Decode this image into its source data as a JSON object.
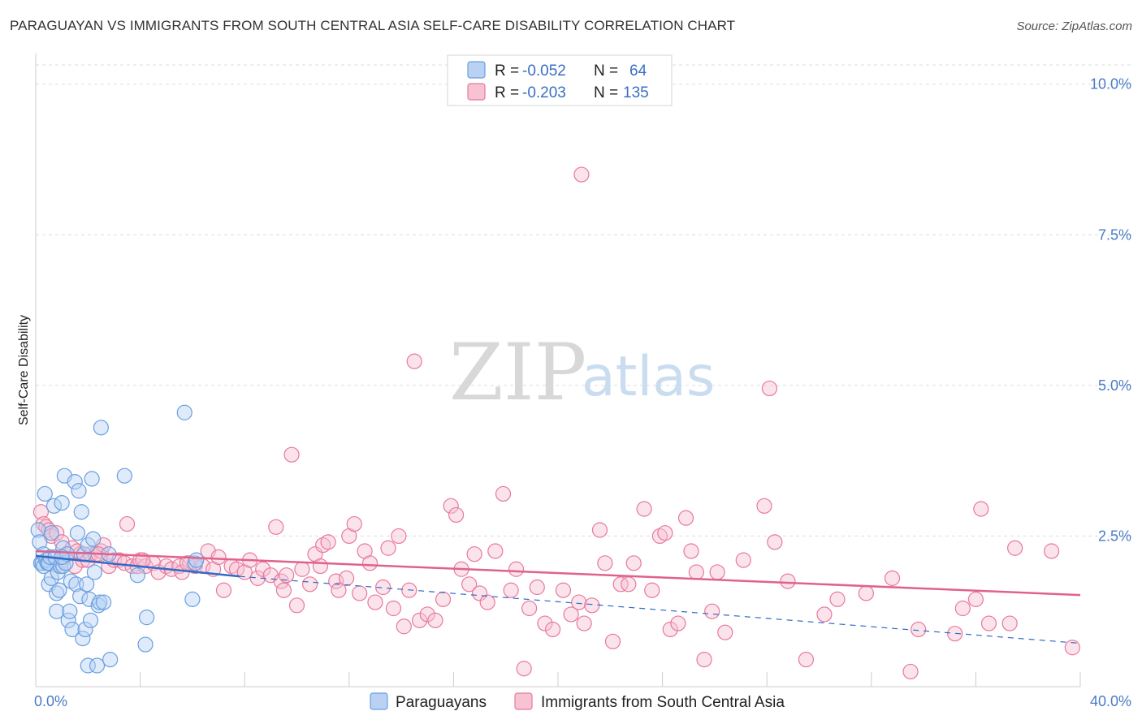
{
  "title": "PARAGUAYAN VS IMMIGRANTS FROM SOUTH CENTRAL ASIA SELF-CARE DISABILITY CORRELATION CHART",
  "source": "Source: ZipAtlas.com",
  "watermark": {
    "left": "ZIP",
    "right": "atlas"
  },
  "colors": {
    "blue": "#6a9fe0",
    "blue_fill": "#b9d2f3",
    "blue_line": "#2f6bc7",
    "pink": "#e8799c",
    "pink_fill": "#f7c2d2",
    "pink_line": "#e0628c",
    "grid": "#dddddd",
    "tick_text": "#4a7cc4"
  },
  "legend_top": {
    "rows": [
      {
        "r_label": "R = ",
        "r_value": "-0.052",
        "n_label": "N = ",
        "n_value": "64"
      },
      {
        "r_label": "R = ",
        "r_value": "-0.203",
        "n_label": "N = ",
        "n_value": "135"
      }
    ]
  },
  "legend_bottom": [
    "Paraguayans",
    "Immigrants from South Central Asia"
  ],
  "chart_data": {
    "type": "scatter",
    "ylabel": "Self-Care Disability",
    "x_tick_labels": [
      "0.0%",
      "40.0%"
    ],
    "y_tick_labels": [
      "10.0%",
      "7.5%",
      "5.0%",
      "2.5%"
    ],
    "y_ticks": [
      10.0,
      7.5,
      5.0,
      2.5
    ],
    "xlim": [
      0,
      40
    ],
    "ylim": [
      0,
      10.4
    ],
    "grid": true,
    "series": [
      {
        "name": "Paraguayans",
        "color": "blue",
        "trend": {
          "x0": 0.0,
          "y0": 2.17,
          "x1": 7.8,
          "y1": 1.83,
          "dashed_x1": 40.0,
          "dashed_y1": 0.72
        },
        "points": [
          [
            0.1,
            2.6
          ],
          [
            0.15,
            2.4
          ],
          [
            0.2,
            2.05
          ],
          [
            0.25,
            2.05
          ],
          [
            0.3,
            2.2
          ],
          [
            0.3,
            2.0
          ],
          [
            0.35,
            3.2
          ],
          [
            0.4,
            2.1
          ],
          [
            0.45,
            2.05
          ],
          [
            0.5,
            2.05
          ],
          [
            0.5,
            1.7
          ],
          [
            0.55,
            2.15
          ],
          [
            0.6,
            1.8
          ],
          [
            0.6,
            2.55
          ],
          [
            0.7,
            3.0
          ],
          [
            0.75,
            2.15
          ],
          [
            0.8,
            1.55
          ],
          [
            0.8,
            1.25
          ],
          [
            0.85,
            1.9
          ],
          [
            0.9,
            1.6
          ],
          [
            0.95,
            2.0
          ],
          [
            1.0,
            3.05
          ],
          [
            1.05,
            2.3
          ],
          [
            1.05,
            2.0
          ],
          [
            1.1,
            3.5
          ],
          [
            1.15,
            2.05
          ],
          [
            1.2,
            2.2
          ],
          [
            1.25,
            1.1
          ],
          [
            1.3,
            1.25
          ],
          [
            1.35,
            1.75
          ],
          [
            1.4,
            0.95
          ],
          [
            1.5,
            3.4
          ],
          [
            1.55,
            1.7
          ],
          [
            1.6,
            2.55
          ],
          [
            1.65,
            3.25
          ],
          [
            1.7,
            1.5
          ],
          [
            1.75,
            2.9
          ],
          [
            1.8,
            0.8
          ],
          [
            1.85,
            2.2
          ],
          [
            1.9,
            0.95
          ],
          [
            1.95,
            1.7
          ],
          [
            2.0,
            2.35
          ],
          [
            2.0,
            0.35
          ],
          [
            2.05,
            1.45
          ],
          [
            2.1,
            1.1
          ],
          [
            2.15,
            3.45
          ],
          [
            2.2,
            2.45
          ],
          [
            2.25,
            1.9
          ],
          [
            2.35,
            0.35
          ],
          [
            2.4,
            1.35
          ],
          [
            2.45,
            1.4
          ],
          [
            2.5,
            4.3
          ],
          [
            2.6,
            1.4
          ],
          [
            2.8,
            2.2
          ],
          [
            2.85,
            0.45
          ],
          [
            3.4,
            3.5
          ],
          [
            3.9,
            1.85
          ],
          [
            4.2,
            0.7
          ],
          [
            4.25,
            1.15
          ],
          [
            5.7,
            4.55
          ],
          [
            6.0,
            1.45
          ],
          [
            6.1,
            2.05
          ],
          [
            6.15,
            2.1
          ],
          [
            1.0,
            2.15
          ]
        ]
      },
      {
        "name": "Immigrants from South Central Asia",
        "color": "pink",
        "trend": {
          "x0": 0.0,
          "y0": 2.25,
          "x1": 40.0,
          "y1": 1.52
        },
        "points": [
          [
            0.2,
            2.9
          ],
          [
            0.3,
            2.7
          ],
          [
            0.4,
            2.65
          ],
          [
            0.5,
            2.6
          ],
          [
            0.6,
            2.5
          ],
          [
            0.8,
            2.55
          ],
          [
            1.0,
            2.4
          ],
          [
            1.2,
            2.2
          ],
          [
            1.4,
            2.3
          ],
          [
            1.5,
            2.0
          ],
          [
            1.7,
            2.2
          ],
          [
            1.8,
            2.1
          ],
          [
            2.0,
            2.1
          ],
          [
            2.1,
            2.2
          ],
          [
            2.3,
            2.2
          ],
          [
            2.5,
            2.25
          ],
          [
            2.6,
            2.35
          ],
          [
            2.8,
            2.0
          ],
          [
            3.0,
            2.1
          ],
          [
            3.2,
            2.1
          ],
          [
            3.4,
            2.05
          ],
          [
            3.5,
            2.7
          ],
          [
            3.7,
            2.0
          ],
          [
            3.9,
            2.0
          ],
          [
            4.0,
            2.1
          ],
          [
            4.2,
            2.0
          ],
          [
            4.5,
            2.05
          ],
          [
            4.7,
            1.9
          ],
          [
            5.0,
            2.0
          ],
          [
            5.2,
            1.95
          ],
          [
            5.5,
            2.0
          ],
          [
            5.6,
            1.9
          ],
          [
            5.9,
            2.05
          ],
          [
            6.1,
            2.0
          ],
          [
            6.4,
            2.0
          ],
          [
            6.6,
            2.25
          ],
          [
            6.8,
            1.95
          ],
          [
            7.0,
            2.15
          ],
          [
            7.2,
            1.6
          ],
          [
            7.5,
            2.0
          ],
          [
            7.7,
            1.95
          ],
          [
            8.0,
            1.9
          ],
          [
            8.2,
            2.1
          ],
          [
            8.5,
            1.8
          ],
          [
            8.7,
            1.95
          ],
          [
            9.0,
            1.85
          ],
          [
            9.2,
            2.65
          ],
          [
            9.4,
            1.75
          ],
          [
            9.5,
            1.6
          ],
          [
            9.6,
            1.85
          ],
          [
            9.8,
            3.85
          ],
          [
            10.0,
            1.35
          ],
          [
            10.2,
            1.95
          ],
          [
            10.5,
            1.7
          ],
          [
            10.7,
            2.2
          ],
          [
            10.9,
            2.0
          ],
          [
            11.0,
            2.35
          ],
          [
            11.2,
            2.4
          ],
          [
            11.5,
            1.75
          ],
          [
            11.6,
            1.6
          ],
          [
            11.9,
            1.8
          ],
          [
            12.0,
            2.5
          ],
          [
            12.2,
            2.7
          ],
          [
            12.4,
            1.55
          ],
          [
            12.6,
            2.25
          ],
          [
            12.8,
            2.05
          ],
          [
            13.0,
            1.4
          ],
          [
            13.3,
            1.65
          ],
          [
            13.5,
            2.3
          ],
          [
            13.7,
            1.3
          ],
          [
            13.9,
            2.5
          ],
          [
            14.1,
            1.0
          ],
          [
            14.3,
            1.6
          ],
          [
            14.5,
            5.4
          ],
          [
            14.7,
            1.1
          ],
          [
            15.0,
            1.2
          ],
          [
            15.3,
            1.1
          ],
          [
            15.6,
            1.45
          ],
          [
            15.9,
            3.0
          ],
          [
            16.1,
            2.85
          ],
          [
            16.3,
            1.95
          ],
          [
            16.6,
            1.7
          ],
          [
            16.8,
            2.2
          ],
          [
            17.0,
            1.55
          ],
          [
            17.3,
            1.4
          ],
          [
            17.6,
            2.25
          ],
          [
            17.9,
            3.2
          ],
          [
            18.2,
            1.6
          ],
          [
            18.4,
            1.95
          ],
          [
            18.7,
            0.3
          ],
          [
            18.9,
            1.3
          ],
          [
            19.2,
            1.65
          ],
          [
            19.5,
            1.05
          ],
          [
            19.8,
            0.95
          ],
          [
            20.2,
            1.6
          ],
          [
            20.5,
            1.2
          ],
          [
            20.8,
            1.4
          ],
          [
            21.0,
            1.05
          ],
          [
            21.3,
            1.35
          ],
          [
            21.6,
            2.6
          ],
          [
            21.8,
            2.05
          ],
          [
            22.1,
            0.75
          ],
          [
            22.4,
            1.7
          ],
          [
            22.7,
            1.7
          ],
          [
            22.9,
            2.05
          ],
          [
            23.3,
            2.95
          ],
          [
            23.6,
            1.6
          ],
          [
            23.9,
            2.5
          ],
          [
            24.1,
            2.55
          ],
          [
            24.3,
            0.95
          ],
          [
            24.6,
            1.05
          ],
          [
            24.9,
            2.8
          ],
          [
            25.1,
            2.25
          ],
          [
            25.3,
            1.9
          ],
          [
            25.6,
            0.45
          ],
          [
            25.9,
            1.25
          ],
          [
            26.1,
            1.9
          ],
          [
            26.4,
            0.9
          ],
          [
            27.1,
            2.1
          ],
          [
            27.9,
            3.0
          ],
          [
            28.1,
            4.95
          ],
          [
            28.3,
            2.4
          ],
          [
            28.8,
            1.75
          ],
          [
            29.5,
            0.45
          ],
          [
            30.2,
            1.2
          ],
          [
            30.7,
            1.45
          ],
          [
            31.8,
            1.55
          ],
          [
            32.8,
            1.8
          ],
          [
            33.5,
            0.25
          ],
          [
            33.8,
            0.95
          ],
          [
            35.2,
            0.88
          ],
          [
            35.5,
            1.3
          ],
          [
            36.0,
            1.45
          ],
          [
            36.2,
            2.95
          ],
          [
            36.5,
            1.05
          ],
          [
            37.3,
            1.05
          ],
          [
            37.5,
            2.3
          ],
          [
            38.9,
            2.25
          ],
          [
            39.7,
            0.65
          ],
          [
            20.9,
            8.5
          ],
          [
            0.9,
            2.05
          ],
          [
            1.6,
            2.25
          ],
          [
            2.4,
            2.2
          ],
          [
            4.1,
            2.1
          ],
          [
            5.8,
            2.05
          ]
        ]
      }
    ]
  }
}
